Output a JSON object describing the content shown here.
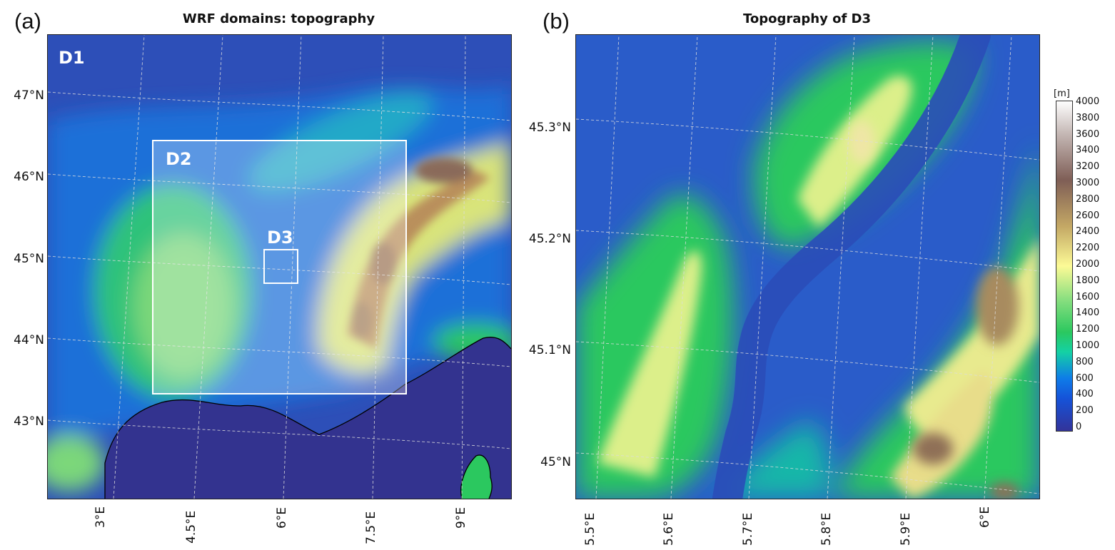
{
  "panels": {
    "a": {
      "letter": "(a)",
      "title": "WRF domains: topography",
      "lat_labels": [
        "47°N",
        "46°N",
        "45°N",
        "44°N",
        "43°N"
      ],
      "lon_labels": [
        "3°E",
        "4.5°E",
        "6°E",
        "7.5°E",
        "9°E"
      ],
      "domains": [
        "D1",
        "D2",
        "D3"
      ]
    },
    "b": {
      "letter": "(b)",
      "title": "Topography of D3",
      "lat_labels": [
        "45.3°N",
        "45.2°N",
        "45.1°N",
        "45°N"
      ],
      "lon_labels": [
        "5.5°E",
        "5.6°E",
        "5.7°E",
        "5.8°E",
        "5.9°E",
        "6°E"
      ]
    }
  },
  "colorbar": {
    "unit": "[m]",
    "min": 0,
    "max": 4000,
    "ticks": [
      "4000",
      "3800",
      "3600",
      "3400",
      "3200",
      "3000",
      "2800",
      "2600",
      "2400",
      "2200",
      "2000",
      "1800",
      "1600",
      "1400",
      "1200",
      "1000",
      "800",
      "600",
      "400",
      "200",
      "0"
    ],
    "colormap": [
      "#333399",
      "#0e7ce8",
      "#14d1a4",
      "#2bc85f",
      "#c2ec84",
      "#fcfa96",
      "#c4a865",
      "#7f5e56",
      "#c4b7b4",
      "#ffffff"
    ]
  },
  "colors": {
    "sea": "#33338f",
    "gridline": "#dddddd",
    "coastline": "#000000",
    "domain_box": "#ffffff"
  }
}
